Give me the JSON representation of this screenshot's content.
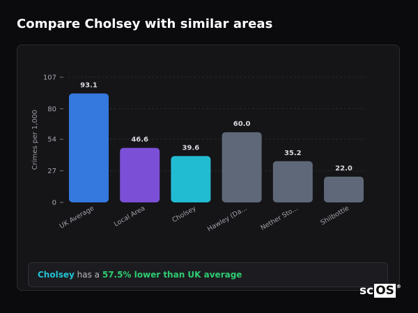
{
  "title": "Compare Cholsey with similar areas",
  "chart_data": {
    "type": "bar",
    "ylabel": "Crimes per 1,000",
    "yticks": [
      0,
      27,
      54,
      80,
      107
    ],
    "ylim": [
      0,
      107
    ],
    "grid": true,
    "categories": [
      "UK Average",
      "Local Area",
      "Cholsey",
      "Hawley (Da...",
      "Nether Sto...",
      "Shilbottle"
    ],
    "values": [
      93.1,
      46.6,
      39.6,
      60.0,
      35.2,
      22.0
    ],
    "value_labels": [
      "93.1",
      "46.6",
      "39.6",
      "60.0",
      "35.2",
      "22.0"
    ],
    "colors": [
      "#3578de",
      "#7b4fd6",
      "#22bcd2",
      "#5e6878",
      "#5e6878",
      "#5e6878"
    ]
  },
  "summary": {
    "area": "Cholsey",
    "middle": " has a ",
    "comparison": "57.5% lower than UK average"
  },
  "logo": {
    "prefix": "sc",
    "boxed": "OS",
    "mark": "®"
  }
}
